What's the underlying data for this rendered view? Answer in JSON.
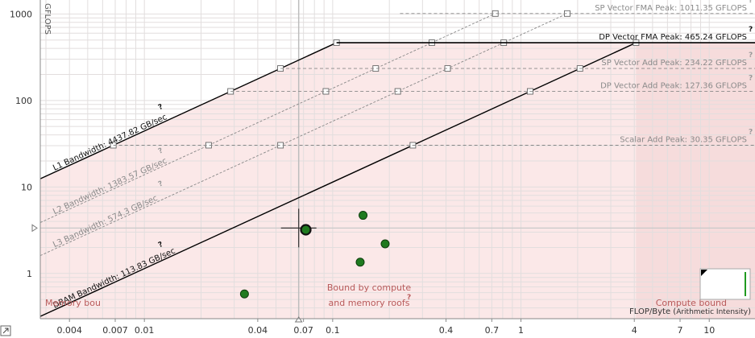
{
  "chart_data": {
    "type": "scatter",
    "title": "",
    "xlabel": "FLOP/Byte",
    "xlabel_suffix": "Arithmetic Intensity",
    "ylabel": "GFLOPS",
    "xscale": "log",
    "yscale": "log",
    "xlim": [
      0.0028,
      17.5
    ],
    "ylim": [
      0.3,
      1450
    ],
    "x_ticks": [
      0.004,
      0.007,
      0.01,
      0.04,
      0.07,
      0.1,
      0.4,
      0.7,
      1,
      4,
      7,
      10
    ],
    "x_tick_labels": [
      "0.004",
      "0.007",
      "0.01",
      "0.04",
      "0.07",
      "0.1",
      "0.4",
      "0.7",
      "1",
      "4",
      "7",
      "10"
    ],
    "y_ticks": [
      1,
      10,
      100,
      1000
    ],
    "y_tick_labels": [
      "1",
      "10",
      "100",
      "1000"
    ],
    "grid": true,
    "compute_roofs": [
      {
        "name": "SP Vector FMA Peak",
        "label": "SP Vector FMA Peak: 1011.35 GFLOPS",
        "value": 1011.35,
        "style": "dashed",
        "color": "#888888"
      },
      {
        "name": "DP Vector FMA Peak",
        "label": "DP Vector FMA Peak: 465.24 GFLOPS",
        "value": 465.24,
        "style": "solid",
        "color": "#000000"
      },
      {
        "name": "SP Vector Add Peak",
        "label": "SP Vector Add Peak: 234.22 GFLOPS",
        "value": 234.22,
        "style": "dashed",
        "color": "#888888"
      },
      {
        "name": "DP Vector Add Peak",
        "label": "DP Vector Add Peak: 127.36 GFLOPS",
        "value": 127.36,
        "style": "dashed",
        "color": "#888888"
      },
      {
        "name": "Scalar Add Peak",
        "label": "Scalar Add Peak: 30.35 GFLOPS",
        "value": 30.35,
        "style": "dashed",
        "color": "#888888"
      }
    ],
    "memory_roofs": [
      {
        "name": "L1 Bandwidth",
        "label": "L1 Bandwidth: 4437.82 GB/sec",
        "value": 4437.82,
        "style": "solid",
        "color": "#000000"
      },
      {
        "name": "L2 Bandwidth",
        "label": "L2 Bandwidth: 1383.57 GB/sec",
        "value": 1383.57,
        "style": "dashed",
        "color": "#888888"
      },
      {
        "name": "L3 Bandwidth",
        "label": "L3 Bandwidth: 574.3 GB/sec",
        "value": 574.3,
        "style": "dashed",
        "color": "#888888"
      },
      {
        "name": "DRAM Bandwidth",
        "label": "DRAM Bandwidth: 113.83 GB/sec",
        "value": 113.83,
        "style": "solid",
        "color": "#000000"
      }
    ],
    "points": [
      {
        "x": 0.034,
        "y": 0.58
      },
      {
        "x": 0.072,
        "y": 3.2,
        "selected": true
      },
      {
        "x": 0.145,
        "y": 4.7
      },
      {
        "x": 0.14,
        "y": 1.35
      },
      {
        "x": 0.19,
        "y": 2.2
      }
    ],
    "crosshair": {
      "x": 0.066,
      "y": 3.35
    },
    "colors": {
      "point": "#1f7a1f",
      "background_zone": "#fbe8e8",
      "compute_zone": "#f6dcdc"
    }
  },
  "zones": {
    "memory_bound": "Memory bou",
    "bound_both_line1": "Bound by compute",
    "bound_both_line2": "and memory roofs",
    "compute_bound": "Compute bound"
  },
  "help_mark": "?",
  "corner_icon": "expand-icon"
}
